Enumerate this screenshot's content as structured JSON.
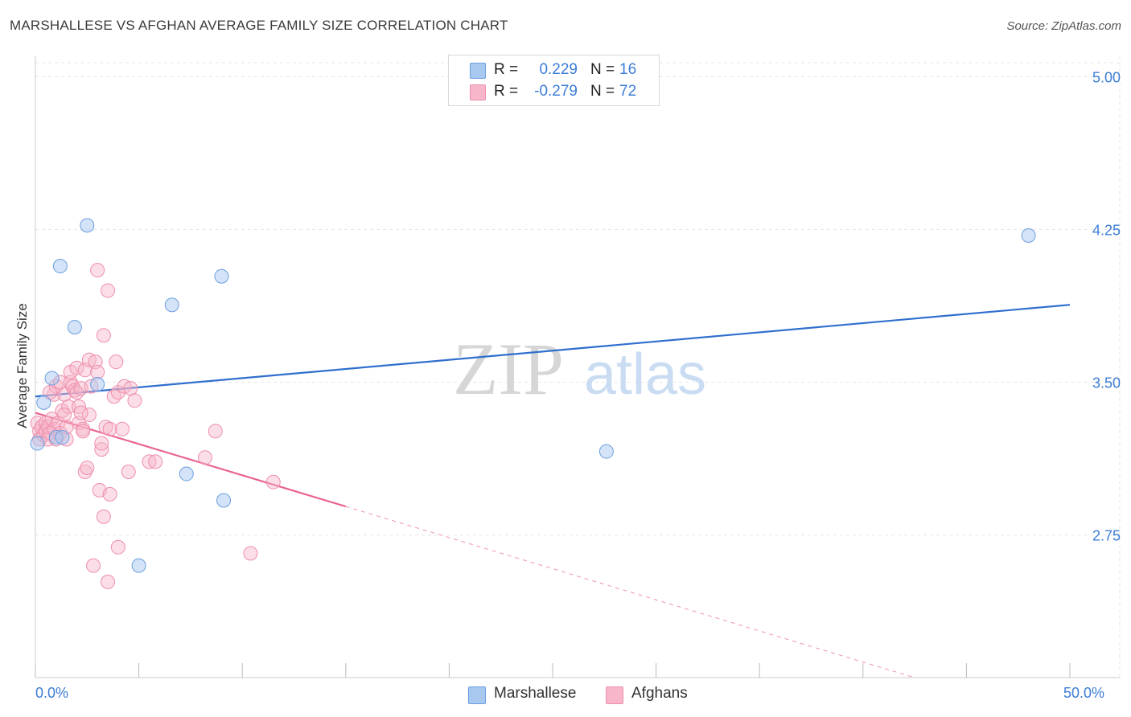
{
  "title": "MARSHALLESE VS AFGHAN AVERAGE FAMILY SIZE CORRELATION CHART",
  "source": "Source: ZipAtlas.com",
  "watermark": {
    "zip": "ZIP",
    "atlas": "atlas"
  },
  "legend": {
    "rows": [
      {
        "r_label": "R =",
        "r_value": "0.229",
        "n_label": "N =",
        "n_value": "16",
        "color": "#a9c8f0"
      },
      {
        "r_label": "R =",
        "r_value": "-0.279",
        "n_label": "N =",
        "n_value": "72",
        "color": "#f7b6c9"
      }
    ]
  },
  "bottom_legend": [
    {
      "label": "Marshallese",
      "color": "#a9c8f0"
    },
    {
      "label": "Afghans",
      "color": "#f7b6c9"
    }
  ],
  "x_axis_labels": {
    "min": "0.0%",
    "max": "50.0%"
  },
  "colors": {
    "marshallese_fill": "#a9c8f0",
    "marshallese_stroke": "#6a9fe0",
    "marshallese_line": "#2f6fce",
    "afghans_fill": "#f7b6c9",
    "afghans_stroke": "#ee8fac",
    "afghans_line": "#e8648f",
    "tick_label": "#3d7dd6",
    "grid": "#e6e6e6"
  },
  "chart_data": {
    "type": "scatter",
    "xlabel": "",
    "ylabel": "Average Family Size",
    "xlim": [
      0,
      50
    ],
    "ylim": [
      2.05,
      5.1
    ],
    "y_ticks": [
      2.75,
      3.5,
      4.25,
      5.0
    ],
    "y_tick_labels": [
      "2.75",
      "3.50",
      "4.25",
      "5.00"
    ],
    "x_ticks": [
      0,
      5,
      10,
      15,
      20,
      25,
      30,
      35,
      40,
      45,
      50
    ],
    "grid": true,
    "series": [
      {
        "name": "Marshallese",
        "r": 0.229,
        "n": 16,
        "points": [
          [
            0.1,
            3.2
          ],
          [
            0.4,
            3.4
          ],
          [
            0.8,
            3.52
          ],
          [
            1.0,
            3.23
          ],
          [
            1.2,
            4.07
          ],
          [
            1.9,
            3.77
          ],
          [
            2.5,
            4.27
          ],
          [
            3.0,
            3.49
          ],
          [
            5.0,
            2.6
          ],
          [
            6.6,
            3.88
          ],
          [
            7.3,
            3.05
          ],
          [
            9.0,
            4.02
          ],
          [
            9.1,
            2.92
          ],
          [
            27.6,
            3.16
          ],
          [
            48.0,
            4.22
          ],
          [
            1.3,
            3.23
          ]
        ],
        "trend": {
          "x": [
            0,
            50
          ],
          "y": [
            3.43,
            3.88
          ],
          "extrapolated": false
        }
      },
      {
        "name": "Afghans",
        "r": -0.279,
        "n": 72,
        "points": [
          [
            0.1,
            3.3
          ],
          [
            0.2,
            3.26
          ],
          [
            0.2,
            3.22
          ],
          [
            0.3,
            3.28
          ],
          [
            0.4,
            3.24
          ],
          [
            0.5,
            3.3
          ],
          [
            0.5,
            3.26
          ],
          [
            0.6,
            3.22
          ],
          [
            0.6,
            3.28
          ],
          [
            0.7,
            3.25
          ],
          [
            0.8,
            3.32
          ],
          [
            0.9,
            3.27
          ],
          [
            0.9,
            3.44
          ],
          [
            1.0,
            3.48
          ],
          [
            1.1,
            3.3
          ],
          [
            1.2,
            3.25
          ],
          [
            1.2,
            3.5
          ],
          [
            1.3,
            3.36
          ],
          [
            1.4,
            3.44
          ],
          [
            1.5,
            3.22
          ],
          [
            1.5,
            3.28
          ],
          [
            1.6,
            3.38
          ],
          [
            1.7,
            3.5
          ],
          [
            1.7,
            3.55
          ],
          [
            1.8,
            3.48
          ],
          [
            1.9,
            3.46
          ],
          [
            2.0,
            3.45
          ],
          [
            2.0,
            3.57
          ],
          [
            2.1,
            3.3
          ],
          [
            2.1,
            3.38
          ],
          [
            2.2,
            3.47
          ],
          [
            2.3,
            3.27
          ],
          [
            2.3,
            3.26
          ],
          [
            2.4,
            3.06
          ],
          [
            2.4,
            3.56
          ],
          [
            2.5,
            3.08
          ],
          [
            2.6,
            3.61
          ],
          [
            2.6,
            3.34
          ],
          [
            2.7,
            3.48
          ],
          [
            2.8,
            2.6
          ],
          [
            2.9,
            3.6
          ],
          [
            3.0,
            3.55
          ],
          [
            3.0,
            4.05
          ],
          [
            3.1,
            2.97
          ],
          [
            3.2,
            3.17
          ],
          [
            3.2,
            3.2
          ],
          [
            3.3,
            2.84
          ],
          [
            3.3,
            3.73
          ],
          [
            3.4,
            3.28
          ],
          [
            3.5,
            3.95
          ],
          [
            3.5,
            2.52
          ],
          [
            3.6,
            3.27
          ],
          [
            3.6,
            2.95
          ],
          [
            3.8,
            3.43
          ],
          [
            3.9,
            3.6
          ],
          [
            4.0,
            3.45
          ],
          [
            4.0,
            2.69
          ],
          [
            4.2,
            3.27
          ],
          [
            4.3,
            3.48
          ],
          [
            4.5,
            3.06
          ],
          [
            4.6,
            3.47
          ],
          [
            4.8,
            3.41
          ],
          [
            5.5,
            3.11
          ],
          [
            5.8,
            3.11
          ],
          [
            8.2,
            3.13
          ],
          [
            8.7,
            3.26
          ],
          [
            10.4,
            2.66
          ],
          [
            11.5,
            3.01
          ],
          [
            1.0,
            3.22
          ],
          [
            0.7,
            3.45
          ],
          [
            1.4,
            3.34
          ],
          [
            2.2,
            3.35
          ]
        ],
        "trend": {
          "x": [
            0,
            15
          ],
          "y": [
            3.35,
            2.89
          ],
          "dash_x": [
            15,
            42.5
          ],
          "dash_y": [
            2.89,
            2.05
          ]
        }
      }
    ]
  }
}
